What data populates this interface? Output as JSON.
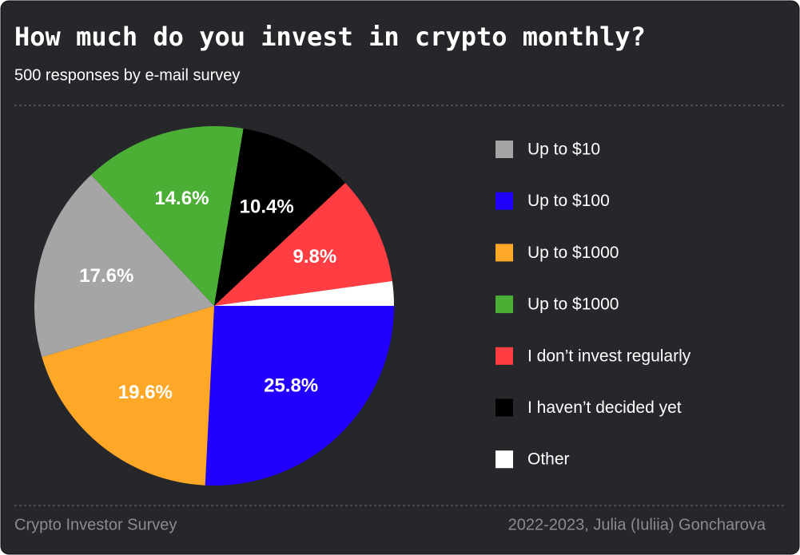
{
  "chart_data": {
    "type": "pie",
    "title": "How much do you invest in crypto monthly?",
    "subtitle": "500 responses by e-mail survey",
    "categories": [
      "Up to $100",
      "Up to $1000",
      "Up to $10",
      "Up to $1000",
      "I haven’t decided yet",
      "I don’t invest regularly",
      "Other"
    ],
    "values": [
      25.8,
      19.6,
      17.6,
      14.6,
      10.4,
      9.8,
      2.2
    ],
    "value_labels": [
      "25.8%",
      "19.6%",
      "17.6%",
      "14.6%",
      "10.4%",
      "9.8%",
      null
    ],
    "colors": [
      "#2200ff",
      "#ffa726",
      "#a5a5a5",
      "#4caf35",
      "#000000",
      "#ff3d42",
      "#ffffff"
    ],
    "direction": "clockwise",
    "start_angle": 0,
    "legend": "right",
    "source": "Crypto Investor Survey",
    "credit": "2022-2023, Julia (Iuliia) Goncharova"
  }
}
